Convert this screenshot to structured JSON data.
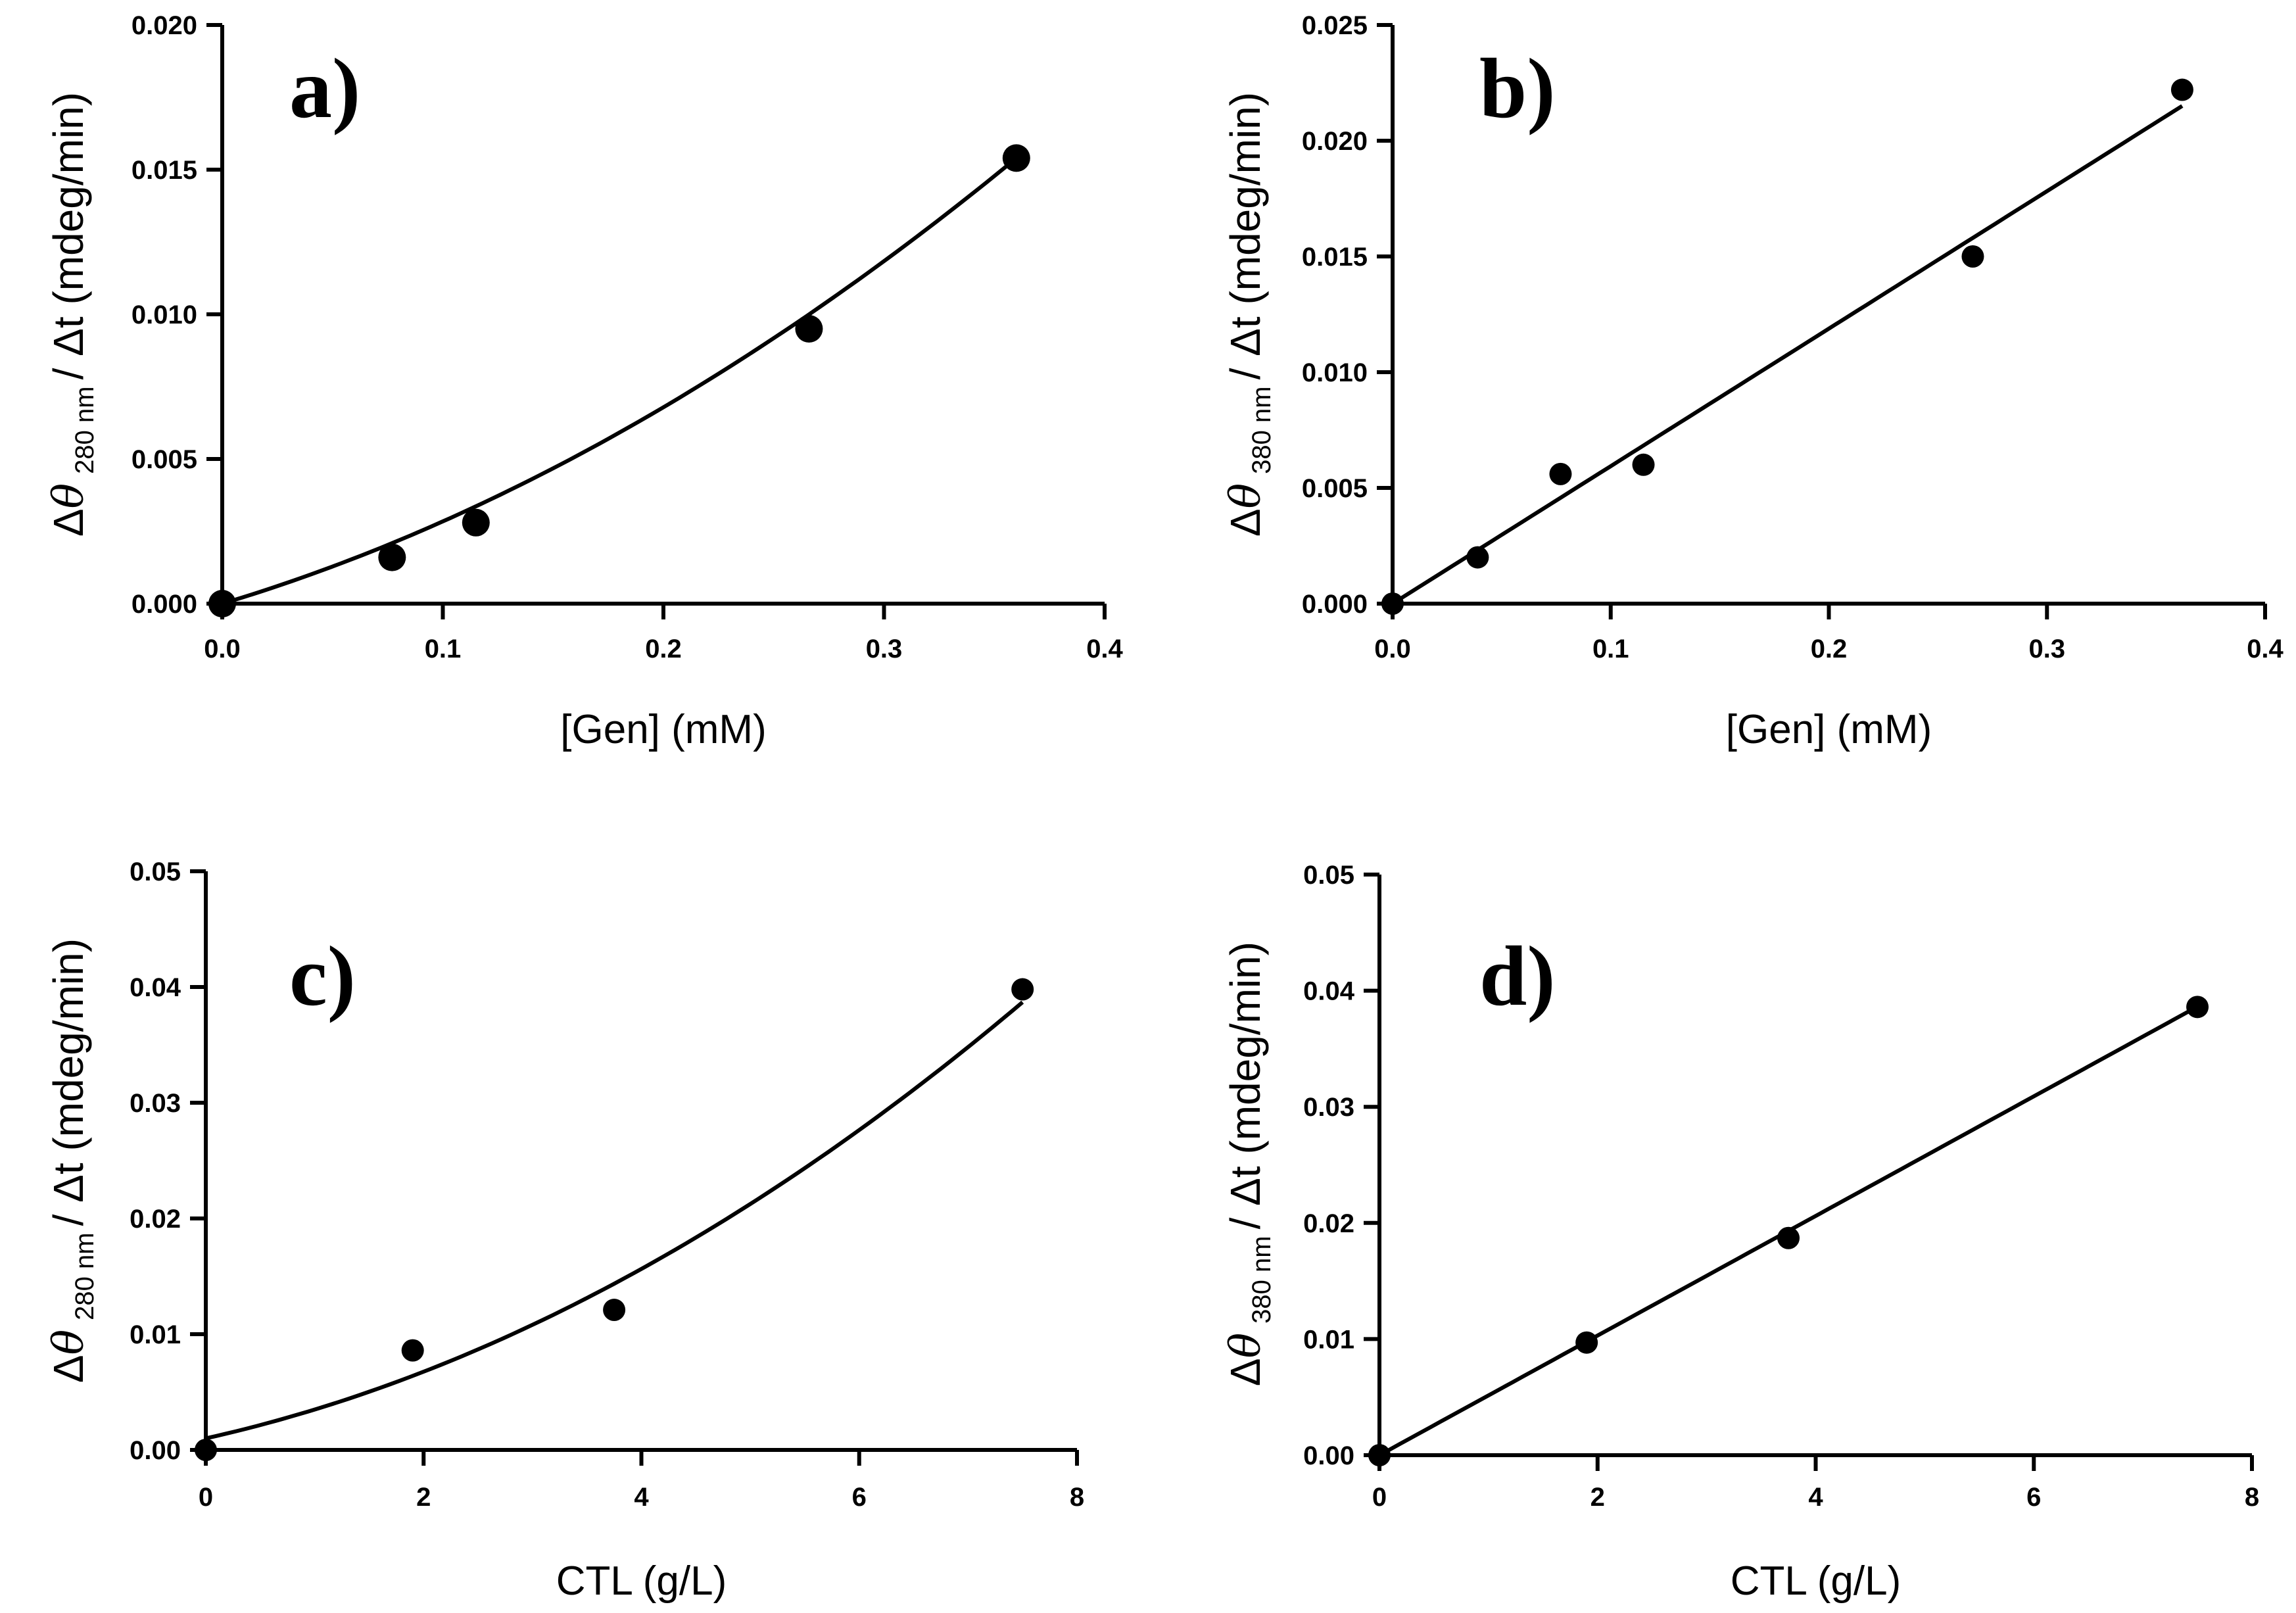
{
  "chart_data": [
    {
      "id": "a",
      "type": "scatter",
      "panel_label": "a)",
      "xlabel": "[Gen] (mM)",
      "ylabel_parts": {
        "delta": "Δ",
        "theta": "θ",
        "sub": "280 nm",
        "rest": "/ Δt (mdeg/min)"
      },
      "xlim": [
        0,
        0.4
      ],
      "ylim": [
        0,
        0.02
      ],
      "xticks": [
        "0.0",
        "0.1",
        "0.2",
        "0.3",
        "0.4"
      ],
      "xtick_values": [
        0,
        0.1,
        0.2,
        0.3,
        0.4
      ],
      "yticks": [
        "0.000",
        "0.005",
        "0.010",
        "0.015",
        "0.020"
      ],
      "ytick_values": [
        0,
        0.005,
        0.01,
        0.015,
        0.02
      ],
      "points": {
        "x": [
          0,
          0.077,
          0.115,
          0.266,
          0.36
        ],
        "y": [
          0,
          0.0016,
          0.0028,
          0.0095,
          0.0154
        ]
      },
      "fit": {
        "kind": "quadratic",
        "coef": [
          0,
          0.0229,
          0.0552
        ],
        "xrange": [
          0,
          0.36
        ]
      }
    },
    {
      "id": "b",
      "type": "scatter",
      "panel_label": "b)",
      "xlabel": "[Gen] (mM)",
      "ylabel_parts": {
        "delta": "Δ",
        "theta": "θ",
        "sub": "380 nm",
        "rest": "/ Δt (mdeg/min)"
      },
      "xlim": [
        0,
        0.4
      ],
      "ylim": [
        0,
        0.025
      ],
      "xticks": [
        "0.0",
        "0.1",
        "0.2",
        "0.3",
        "0.4"
      ],
      "xtick_values": [
        0,
        0.1,
        0.2,
        0.3,
        0.4
      ],
      "yticks": [
        "0.000",
        "0.005",
        "0.010",
        "0.015",
        "0.020",
        "0.025"
      ],
      "ytick_values": [
        0,
        0.005,
        0.01,
        0.015,
        0.02,
        0.025
      ],
      "points": {
        "x": [
          0,
          0.039,
          0.077,
          0.115,
          0.266,
          0.362
        ],
        "y": [
          0,
          0.002,
          0.0056,
          0.006,
          0.015,
          0.0222
        ]
      },
      "fit": {
        "kind": "linear",
        "coef": [
          0,
          0.0594
        ],
        "xrange": [
          0,
          0.362
        ]
      }
    },
    {
      "id": "c",
      "type": "scatter",
      "panel_label": "c)",
      "xlabel": "CTL (g/L)",
      "ylabel_parts": {
        "delta": "Δ",
        "theta": "θ",
        "sub": "280 nm",
        "rest": "/ Δt (mdeg/min)"
      },
      "xlim": [
        0,
        8
      ],
      "ylim": [
        0,
        0.05
      ],
      "xticks": [
        "0",
        "2",
        "4",
        "6",
        "8"
      ],
      "xtick_values": [
        0,
        2,
        4,
        6,
        8
      ],
      "yticks": [
        "0.00",
        "0.01",
        "0.02",
        "0.03",
        "0.04",
        "0.05"
      ],
      "ytick_values": [
        0,
        0.01,
        0.02,
        0.03,
        0.04,
        0.05
      ],
      "points": {
        "x": [
          0,
          1.9,
          3.75,
          7.5
        ],
        "y": [
          0,
          0.0086,
          0.0121,
          0.0398
        ]
      },
      "fit": {
        "kind": "quadratic",
        "coef": [
          0.001,
          0.0021,
          0.00039
        ],
        "xrange": [
          0,
          7.5
        ]
      }
    },
    {
      "id": "d",
      "type": "scatter",
      "panel_label": "d)",
      "xlabel": "CTL (g/L)",
      "ylabel_parts": {
        "delta": "Δ",
        "theta": "θ",
        "sub": "380 nm",
        "rest": "/ Δt (mdeg/min)"
      },
      "xlim": [
        0,
        8
      ],
      "ylim": [
        0,
        0.05
      ],
      "xticks": [
        "0",
        "2",
        "4",
        "6",
        "8"
      ],
      "xtick_values": [
        0,
        2,
        4,
        6,
        8
      ],
      "yticks": [
        "0.00",
        "0.01",
        "0.02",
        "0.03",
        "0.04",
        "0.05"
      ],
      "ytick_values": [
        0,
        0.01,
        0.02,
        0.03,
        0.04,
        0.05
      ],
      "points": {
        "x": [
          0,
          1.9,
          3.75,
          7.5
        ],
        "y": [
          0,
          0.0097,
          0.0187,
          0.0386
        ]
      },
      "fit": {
        "kind": "linear",
        "coef": [
          0,
          0.00515
        ],
        "xrange": [
          0,
          7.5
        ]
      }
    }
  ]
}
